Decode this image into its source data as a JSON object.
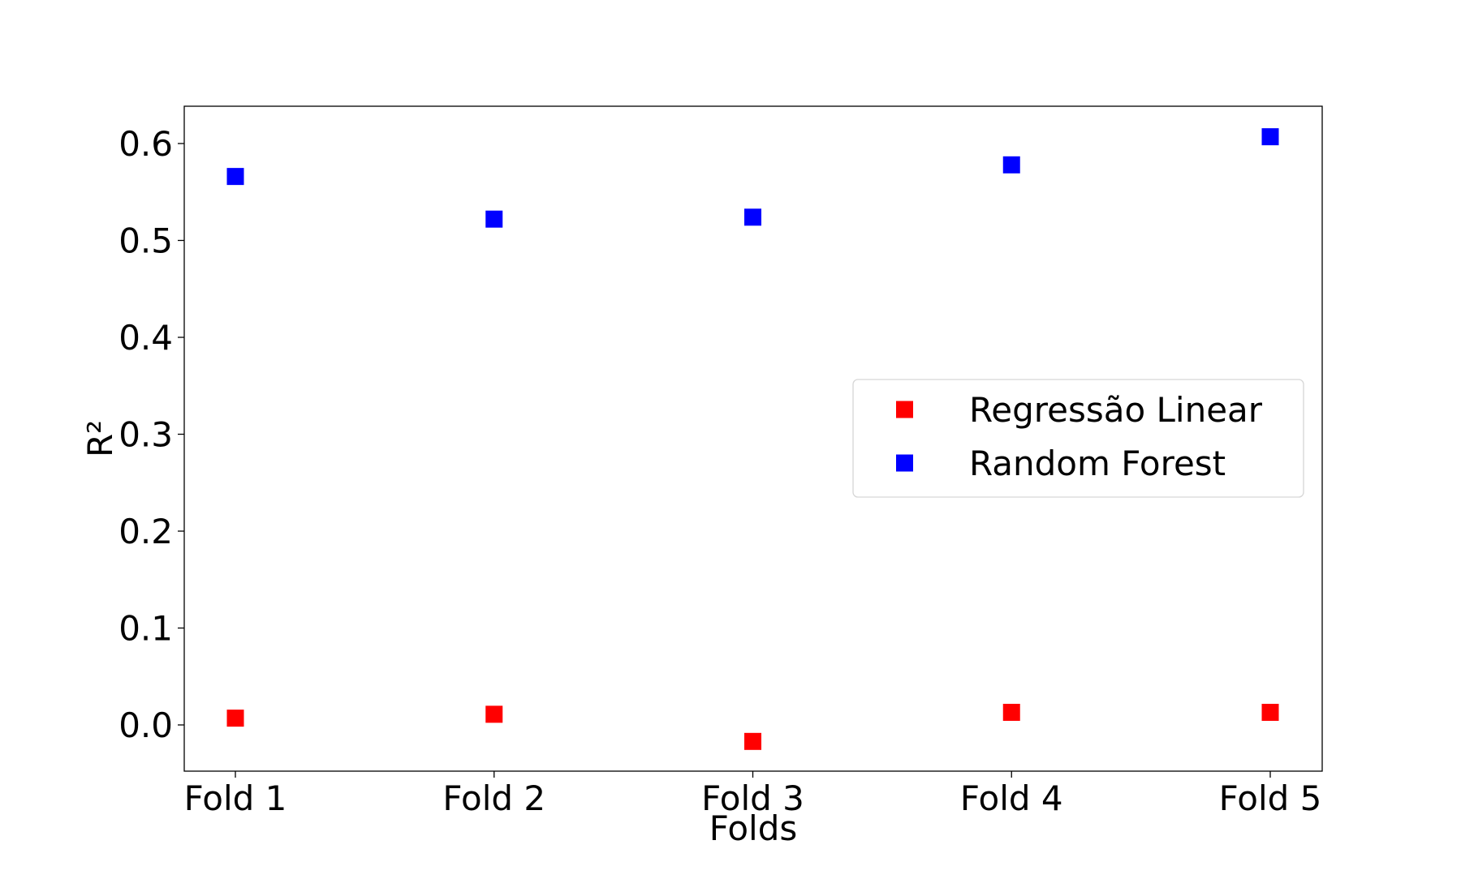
{
  "chart_data": {
    "type": "scatter",
    "title": "",
    "xlabel": "Folds",
    "ylabel": "R²",
    "categories": [
      "Fold 1",
      "Fold 2",
      "Fold 3",
      "Fold 4",
      "Fold 5"
    ],
    "ylim": [
      -0.05,
      0.64
    ],
    "yticks": [
      0.0,
      0.1,
      0.2,
      0.3,
      0.4,
      0.5,
      0.6
    ],
    "ytick_labels": [
      "0.0",
      "0.1",
      "0.2",
      "0.3",
      "0.4",
      "0.5",
      "0.6"
    ],
    "grid": false,
    "legend_position": "center-right",
    "marker": "square",
    "series": [
      {
        "name": "Regressão Linear",
        "color": "#ff0000",
        "values": [
          0.007,
          0.011,
          -0.017,
          0.013,
          0.013
        ]
      },
      {
        "name": "Random Forest",
        "color": "#0000ff",
        "values": [
          0.566,
          0.522,
          0.524,
          0.578,
          0.607
        ]
      }
    ]
  }
}
